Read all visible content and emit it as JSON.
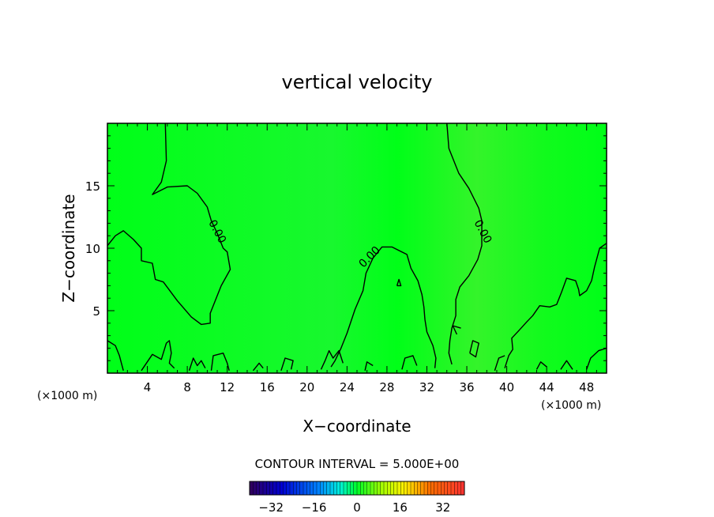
{
  "chart_data": {
    "type": "contour",
    "title": "vertical velocity",
    "xlabel": "X−coordinate",
    "ylabel": "Z−coordinate",
    "x_unit_left": "(×1000 m)",
    "x_unit_right": "(×1000 m)",
    "xlim": [
      0,
      50
    ],
    "ylim": [
      0,
      20
    ],
    "x_ticks": [
      4,
      8,
      12,
      16,
      20,
      24,
      28,
      32,
      36,
      40,
      44,
      48
    ],
    "y_ticks": [
      5,
      10,
      15
    ],
    "contour_interval_text": "CONTOUR INTERVAL = 5.000E+00",
    "contour_labels": [
      {
        "text": "0.00",
        "x": 10.7,
        "y": 11.2
      },
      {
        "text": "0.00",
        "x": 26.5,
        "y": 9.1
      },
      {
        "text": "0.00",
        "x": 37.3,
        "y": 11.2
      }
    ],
    "colorbar": {
      "range": [
        -40,
        40
      ],
      "ticks": [
        -32,
        -16,
        0,
        16,
        32
      ],
      "tick_labels": [
        "−32",
        "−16",
        "0",
        "16",
        "32"
      ]
    },
    "colors": {
      "field_base": "#00ff18",
      "contour_line": "#000000"
    },
    "contours": [
      [
        [
          5.8,
          20
        ],
        [
          5.9,
          17
        ],
        [
          5.4,
          15.3
        ],
        [
          4.5,
          14.3
        ],
        [
          6,
          14.9
        ],
        [
          8,
          15
        ],
        [
          9,
          14.4
        ],
        [
          10,
          13.3
        ],
        [
          10.4,
          12.2
        ],
        [
          11,
          11.2
        ],
        [
          11.6,
          10
        ],
        [
          12,
          9.7
        ],
        [
          12.3,
          8.3
        ],
        [
          11.4,
          7
        ],
        [
          10.8,
          5.8
        ],
        [
          10.3,
          4.8
        ],
        [
          10.3,
          4.0
        ],
        [
          9.4,
          3.9
        ],
        [
          8.4,
          4.5
        ],
        [
          7,
          5.8
        ],
        [
          5.6,
          7.3
        ],
        [
          4.8,
          7.5
        ],
        [
          4.5,
          8.8
        ],
        [
          3.4,
          9.0
        ],
        [
          3.4,
          10.0
        ],
        [
          2.6,
          10.7
        ],
        [
          1.6,
          11.4
        ],
        [
          0.8,
          11.0
        ],
        [
          0,
          10.2
        ]
      ],
      [
        [
          22.4,
          0.5
        ],
        [
          22.8,
          1.0
        ],
        [
          23.4,
          2.0
        ],
        [
          24.0,
          3.2
        ],
        [
          24.8,
          5.1
        ],
        [
          25.6,
          6.6
        ],
        [
          25.9,
          8.0
        ],
        [
          26.6,
          9.2
        ],
        [
          27.5,
          10.1
        ],
        [
          28.5,
          10.1
        ],
        [
          30,
          9.5
        ],
        [
          30.4,
          8.4
        ],
        [
          31.1,
          7.4
        ],
        [
          31.5,
          6.3
        ],
        [
          31.7,
          5.3
        ],
        [
          31.8,
          4.3
        ],
        [
          32.0,
          3.3
        ],
        [
          32.6,
          2.2
        ],
        [
          32.9,
          1.2
        ],
        [
          32.8,
          0.4
        ]
      ],
      [
        [
          34.0,
          20
        ],
        [
          34.2,
          18
        ],
        [
          35.2,
          16
        ],
        [
          36.2,
          14.8
        ],
        [
          37.2,
          13.2
        ],
        [
          37.5,
          12.2
        ],
        [
          37.5,
          10.2
        ],
        [
          37.1,
          9.1
        ],
        [
          36.2,
          7.8
        ],
        [
          35.3,
          6.9
        ],
        [
          34.9,
          5.9
        ],
        [
          34.9,
          4.6
        ],
        [
          34.5,
          3.6
        ],
        [
          34.3,
          2.6
        ],
        [
          34.2,
          1.6
        ],
        [
          34.5,
          0.7
        ]
      ],
      [
        [
          50,
          10.4
        ],
        [
          49.3,
          10.0
        ],
        [
          48.8,
          8.5
        ],
        [
          48.5,
          7.4
        ],
        [
          48.0,
          6.6
        ],
        [
          47.3,
          6.2
        ],
        [
          47.2,
          6.7
        ],
        [
          46.9,
          7.4
        ],
        [
          46.0,
          7.6
        ],
        [
          45.5,
          6.5
        ],
        [
          45.0,
          5.5
        ],
        [
          44.3,
          5.3
        ],
        [
          43.3,
          5.4
        ],
        [
          42.6,
          4.6
        ],
        [
          42.0,
          4.1
        ],
        [
          41.2,
          3.4
        ],
        [
          40.5,
          2.8
        ],
        [
          40.6,
          1.9
        ],
        [
          40.2,
          1.4
        ],
        [
          39.8,
          0.4
        ]
      ],
      [
        [
          0,
          2.6
        ],
        [
          0.8,
          2.2
        ],
        [
          1.2,
          1.4
        ],
        [
          1.4,
          0.8
        ],
        [
          1.6,
          0.2
        ]
      ],
      [
        [
          3.4,
          0.2
        ],
        [
          4.5,
          1.5
        ],
        [
          5.4,
          1.1
        ],
        [
          5.9,
          2.4
        ],
        [
          6.2,
          2.6
        ],
        [
          6.4,
          1.6
        ],
        [
          6.2,
          0.8
        ],
        [
          6.7,
          0.4
        ]
      ],
      [
        [
          8.2,
          0.2
        ],
        [
          8.6,
          1.2
        ],
        [
          9.0,
          0.6
        ],
        [
          9.4,
          1.0
        ],
        [
          9.8,
          0.4
        ]
      ],
      [
        [
          10.4,
          0.2
        ],
        [
          10.6,
          1.4
        ],
        [
          11.6,
          1.6
        ],
        [
          12.0,
          0.8
        ],
        [
          12.2,
          0.2
        ]
      ],
      [
        [
          14.6,
          0.2
        ],
        [
          15.2,
          0.8
        ],
        [
          15.6,
          0.4
        ]
      ],
      [
        [
          17.4,
          0.2
        ],
        [
          17.8,
          1.2
        ],
        [
          18.6,
          1.0
        ],
        [
          18.4,
          0.3
        ]
      ],
      [
        [
          21.4,
          0.3
        ],
        [
          21.8,
          1.0
        ],
        [
          22.2,
          1.8
        ],
        [
          22.6,
          1.2
        ],
        [
          23.2,
          1.8
        ],
        [
          23.6,
          0.8
        ]
      ],
      [
        [
          25.8,
          0.2
        ],
        [
          26.0,
          0.9
        ],
        [
          26.6,
          0.6
        ]
      ],
      [
        [
          29.5,
          0.3
        ],
        [
          29.8,
          1.2
        ],
        [
          30.6,
          1.4
        ],
        [
          31.0,
          0.6
        ]
      ],
      [
        [
          35.0,
          3.1
        ],
        [
          34.6,
          3.8
        ],
        [
          35.4,
          3.6
        ]
      ],
      [
        [
          36.3,
          1.6
        ],
        [
          36.6,
          2.6
        ],
        [
          37.2,
          2.4
        ],
        [
          36.9,
          1.3
        ],
        [
          36.3,
          1.6
        ]
      ],
      [
        [
          29.0,
          7.0
        ],
        [
          29.2,
          7.5
        ],
        [
          29.4,
          7.0
        ],
        [
          29.0,
          7.0
        ]
      ],
      [
        [
          38.8,
          0.2
        ],
        [
          39.2,
          1.2
        ],
        [
          39.8,
          1.4
        ]
      ],
      [
        [
          43.0,
          0.3
        ],
        [
          43.4,
          0.9
        ],
        [
          44.0,
          0.5
        ]
      ],
      [
        [
          45.4,
          0.3
        ],
        [
          46.0,
          1.0
        ],
        [
          46.6,
          0.3
        ]
      ],
      [
        [
          48.0,
          0.3
        ],
        [
          48.4,
          1.2
        ],
        [
          49.2,
          1.8
        ],
        [
          50,
          2.0
        ]
      ]
    ]
  }
}
